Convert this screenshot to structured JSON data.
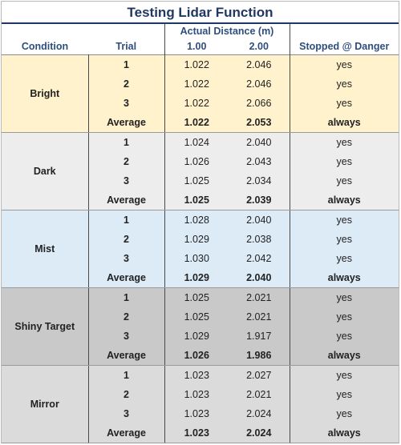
{
  "title": "Testing Lidar Function",
  "headers": {
    "actual_distance": "Actual Distance (m)",
    "condition": "Condition",
    "trial": "Trial",
    "d1": "1.00",
    "d2": "2.00",
    "stopped": "Stopped @ Danger"
  },
  "colors": {
    "bright": "#fff2cc",
    "dark": "#ededed",
    "mist": "#ddebf7",
    "shiny": "#c9c9c9",
    "mirror": "#dbdbdb",
    "title": "#1f3864"
  },
  "groups": [
    {
      "condition": "Bright",
      "color": "#fff2cc",
      "rows": [
        {
          "trial": "1",
          "d1": "1.022",
          "d2": "2.046",
          "stopped": "yes"
        },
        {
          "trial": "2",
          "d1": "1.022",
          "d2": "2.046",
          "stopped": "yes"
        },
        {
          "trial": "3",
          "d1": "1.022",
          "d2": "2.066",
          "stopped": "yes"
        }
      ],
      "average": {
        "label": "Average",
        "d1": "1.022",
        "d2": "2.053",
        "stopped": "always"
      }
    },
    {
      "condition": "Dark",
      "color": "#ededed",
      "rows": [
        {
          "trial": "1",
          "d1": "1.024",
          "d2": "2.040",
          "stopped": "yes"
        },
        {
          "trial": "2",
          "d1": "1.026",
          "d2": "2.043",
          "stopped": "yes"
        },
        {
          "trial": "3",
          "d1": "1.025",
          "d2": "2.034",
          "stopped": "yes"
        }
      ],
      "average": {
        "label": "Average",
        "d1": "1.025",
        "d2": "2.039",
        "stopped": "always"
      }
    },
    {
      "condition": "Mist",
      "color": "#ddebf7",
      "rows": [
        {
          "trial": "1",
          "d1": "1.028",
          "d2": "2.040",
          "stopped": "yes"
        },
        {
          "trial": "2",
          "d1": "1.029",
          "d2": "2.038",
          "stopped": "yes"
        },
        {
          "trial": "3",
          "d1": "1.030",
          "d2": "2.042",
          "stopped": "yes"
        }
      ],
      "average": {
        "label": "Average",
        "d1": "1.029",
        "d2": "2.040",
        "stopped": "always"
      }
    },
    {
      "condition": "Shiny Target",
      "color": "#c9c9c9",
      "rows": [
        {
          "trial": "1",
          "d1": "1.025",
          "d2": "2.021",
          "stopped": "yes"
        },
        {
          "trial": "2",
          "d1": "1.025",
          "d2": "2.021",
          "stopped": "yes"
        },
        {
          "trial": "3",
          "d1": "1.029",
          "d2": "1.917",
          "stopped": "yes"
        }
      ],
      "average": {
        "label": "Average",
        "d1": "1.026",
        "d2": "1.986",
        "stopped": "always"
      }
    },
    {
      "condition": "Mirror",
      "color": "#dbdbdb",
      "rows": [
        {
          "trial": "1",
          "d1": "1.023",
          "d2": "2.027",
          "stopped": "yes"
        },
        {
          "trial": "2",
          "d1": "1.023",
          "d2": "2.021",
          "stopped": "yes"
        },
        {
          "trial": "3",
          "d1": "1.023",
          "d2": "2.024",
          "stopped": "yes"
        }
      ],
      "average": {
        "label": "Average",
        "d1": "1.023",
        "d2": "2.024",
        "stopped": "always"
      }
    }
  ]
}
